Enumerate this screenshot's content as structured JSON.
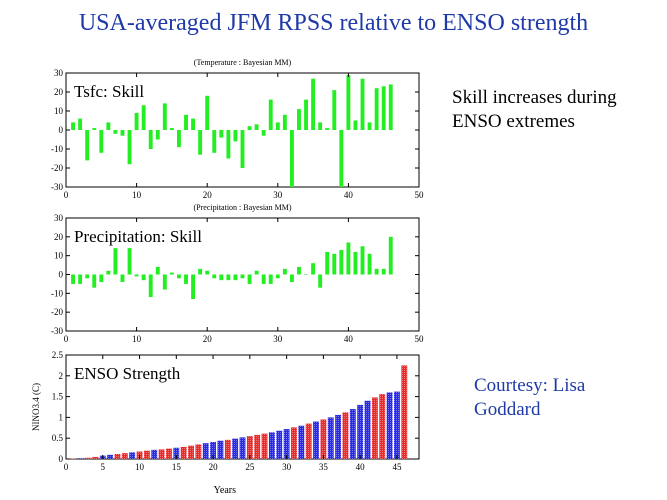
{
  "title": "USA-averaged JFM RPSS relative to ENSO strength",
  "note": [
    "Skill increases during",
    "ENSO extremes"
  ],
  "credit": [
    "Courtesy: Lisa",
    "Goddard"
  ],
  "colors": {
    "skill": "#22ee22",
    "la_nina": "#2a2ae0",
    "el_nino": "#e82a2a"
  },
  "chart_data": [
    {
      "type": "bar",
      "title": "(Temperature : Bayesian MM)",
      "panel_label": "Tsfc: Skill",
      "xlim": [
        0,
        50
      ],
      "ylim": [
        -30,
        30
      ],
      "xticks": [
        0,
        10,
        20,
        30,
        40,
        50
      ],
      "yticks": [
        -30,
        -20,
        -10,
        0,
        10,
        20,
        30
      ],
      "x": [
        1,
        2,
        3,
        4,
        5,
        6,
        7,
        8,
        9,
        10,
        11,
        12,
        13,
        14,
        15,
        16,
        17,
        18,
        19,
        20,
        21,
        22,
        23,
        24,
        25,
        26,
        27,
        28,
        29,
        30,
        31,
        32,
        33,
        34,
        35,
        36,
        37,
        38,
        39,
        40,
        41,
        42,
        43,
        44,
        45,
        46
      ],
      "values": [
        4,
        6,
        -16,
        1,
        -12,
        4,
        -2,
        -3,
        -18,
        9,
        13,
        -10,
        -5,
        14,
        1,
        -9,
        8,
        6,
        -13,
        18,
        -12,
        -4,
        -15,
        -6,
        -20,
        2,
        3,
        -3,
        16,
        4,
        8,
        -32,
        11,
        16,
        27,
        4,
        1,
        21,
        -32,
        29,
        5,
        27,
        4,
        22,
        23,
        24
      ]
    },
    {
      "type": "bar",
      "title": "(Precipitation : Bayesian MM)",
      "panel_label": "Precipitation: Skill",
      "xlim": [
        0,
        50
      ],
      "ylim": [
        -30,
        30
      ],
      "xticks": [
        0,
        10,
        20,
        30,
        40,
        50
      ],
      "yticks": [
        -30,
        -20,
        -10,
        0,
        10,
        20,
        30
      ],
      "x": [
        1,
        2,
        3,
        4,
        5,
        6,
        7,
        8,
        9,
        10,
        11,
        12,
        13,
        14,
        15,
        16,
        17,
        18,
        19,
        20,
        21,
        22,
        23,
        24,
        25,
        26,
        27,
        28,
        29,
        30,
        31,
        32,
        33,
        34,
        35,
        36,
        37,
        38,
        39,
        40,
        41,
        42,
        43,
        44,
        45,
        46
      ],
      "values": [
        -5,
        -5,
        -2,
        -7,
        -4,
        2,
        14,
        -4,
        14,
        -1,
        -3,
        -12,
        4,
        -8,
        1,
        -2,
        -5,
        -13,
        3,
        2,
        -2,
        -3,
        -3,
        -3,
        -2,
        -5,
        2,
        -5,
        -5,
        -2,
        3,
        -4,
        4,
        0,
        6,
        -7,
        12,
        11,
        13,
        17,
        12,
        15,
        11,
        3,
        3,
        20
      ]
    },
    {
      "type": "bar",
      "panel_label": "ENSO Strength",
      "xlabel": "Years",
      "ylabel": "NINO3.4 (C)",
      "xlim": [
        0,
        48
      ],
      "ylim": [
        0,
        2.5
      ],
      "xticks": [
        0,
        5,
        10,
        15,
        20,
        25,
        30,
        35,
        40,
        45
      ],
      "yticks": [
        0,
        0.5,
        1,
        1.5,
        2,
        2.5
      ],
      "x": [
        1,
        2,
        3,
        4,
        5,
        6,
        7,
        8,
        9,
        10,
        11,
        12,
        13,
        14,
        15,
        16,
        17,
        18,
        19,
        20,
        21,
        22,
        23,
        24,
        25,
        26,
        27,
        28,
        29,
        30,
        31,
        32,
        33,
        34,
        35,
        36,
        37,
        38,
        39,
        40,
        41,
        42,
        43,
        44,
        45,
        46
      ],
      "values": [
        0.01,
        0.02,
        0.03,
        0.05,
        0.08,
        0.1,
        0.12,
        0.14,
        0.16,
        0.18,
        0.2,
        0.22,
        0.23,
        0.25,
        0.27,
        0.29,
        0.32,
        0.35,
        0.38,
        0.41,
        0.44,
        0.46,
        0.49,
        0.52,
        0.55,
        0.58,
        0.61,
        0.64,
        0.68,
        0.72,
        0.76,
        0.8,
        0.85,
        0.9,
        0.95,
        1.0,
        1.06,
        1.12,
        1.2,
        1.3,
        1.4,
        1.48,
        1.56,
        1.6,
        1.62,
        2.25
      ],
      "phase": [
        "red",
        "blue",
        "red",
        "red",
        "blue",
        "blue",
        "red",
        "red",
        "blue",
        "red",
        "red",
        "blue",
        "red",
        "red",
        "blue",
        "red",
        "red",
        "red",
        "blue",
        "blue",
        "blue",
        "red",
        "blue",
        "blue",
        "red",
        "red",
        "red",
        "blue",
        "blue",
        "blue",
        "red",
        "blue",
        "red",
        "blue",
        "red",
        "blue",
        "blue",
        "red",
        "blue",
        "blue",
        "blue",
        "red",
        "red",
        "blue",
        "blue",
        "red"
      ]
    }
  ]
}
